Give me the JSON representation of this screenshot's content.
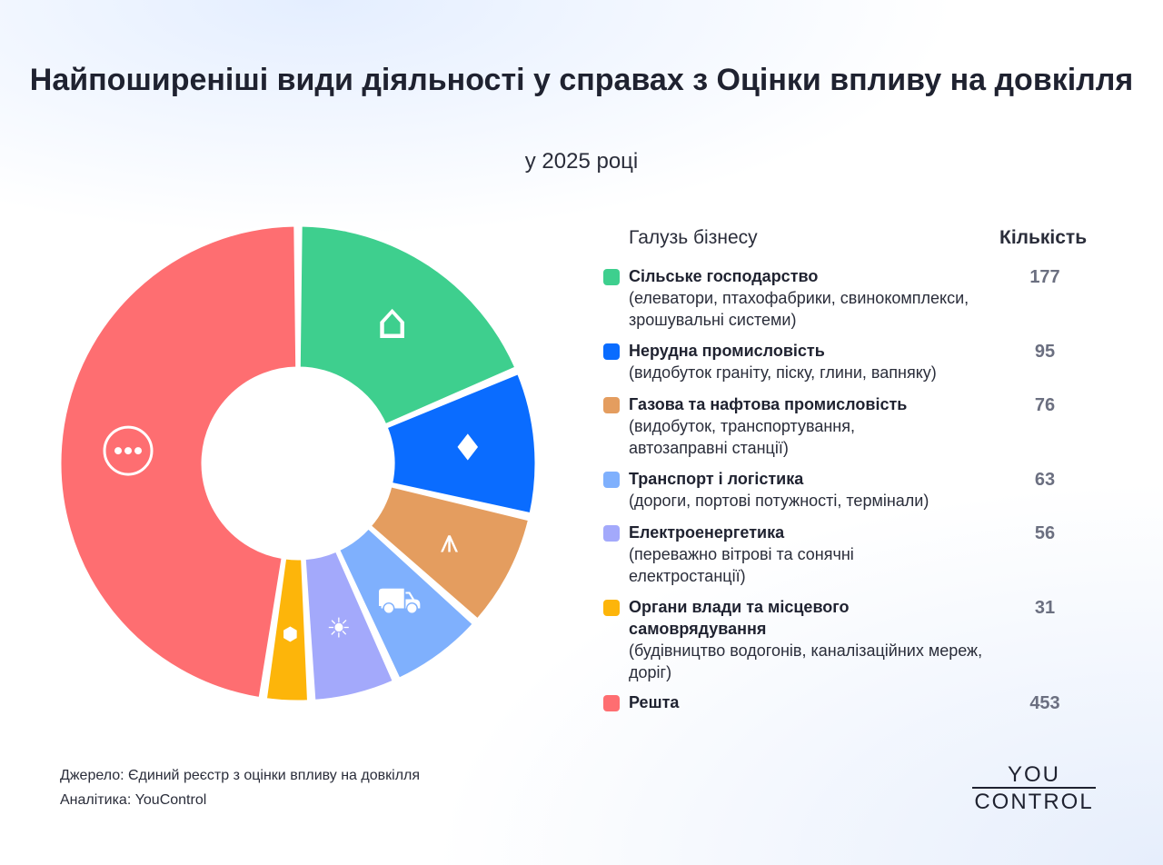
{
  "header": {
    "title": "Найпоширеніші види діяльності у справах з Оцінки впливу на довкілля",
    "subtitle": "у 2025 році"
  },
  "legend": {
    "industry_header": "Галузь бізнесу",
    "count_header": "Кількість",
    "items": [
      {
        "name": "Сільське господарство",
        "desc": "(елеватори, птахофабрики, свинокомплекси, зрошувальні системи)",
        "value": "177",
        "color": "#3ecf8e",
        "icon": "barn-icon"
      },
      {
        "name": "Нерудна промисловість",
        "desc": "(видобуток граніту, піску, глини, вапняку)",
        "value": "95",
        "color": "#0a6cff",
        "icon": "crystals-icon"
      },
      {
        "name": "Газова та нафтова промисловість",
        "desc": "(видобуток, транспортування, автозаправні станції)",
        "value": "76",
        "color": "#e49d5f",
        "icon": "oil-rig-icon"
      },
      {
        "name": "Транспорт і логістика",
        "desc": "(дороги, портові потужності, термінали)",
        "value": "63",
        "color": "#7fb0fd",
        "icon": "truck-icon"
      },
      {
        "name": "Електроенергетика",
        "desc": "(переважно вітрові та сонячні електростанції)",
        "value": "56",
        "color": "#a3a9fb",
        "icon": "lightbulb-icon"
      },
      {
        "name": "Органи влади та місцевого самоврядування",
        "desc": "(будівництво водогонів, каналізаційних мереж, доріг)",
        "value": "31",
        "color": "#fdb50a",
        "icon": "shield-user-icon"
      },
      {
        "name": "Решта",
        "desc": "",
        "value": "453",
        "color": "#fe6e71",
        "icon": "more-dots-icon"
      }
    ]
  },
  "footer": {
    "source": "Джерело: Єдиний реєстр з оцінки впливу на довкілля",
    "analytics": "Аналітика: YouControl"
  },
  "logo": {
    "line1": "YOU",
    "line2": "CONTROL"
  },
  "chart_data": {
    "type": "pie",
    "variant": "donut",
    "title": "Найпоширеніші види діяльності у справах з Оцінки впливу на довкілля",
    "subtitle": "у 2025 році",
    "categories": [
      "Сільське господарство",
      "Нерудна промисловість",
      "Газова та нафтова промисловість",
      "Транспорт і логістика",
      "Електроенергетика",
      "Органи влади та місцевого самоврядування",
      "Решта"
    ],
    "values": [
      177,
      95,
      76,
      63,
      56,
      31,
      453
    ],
    "colors": [
      "#3ecf8e",
      "#0a6cff",
      "#e49d5f",
      "#7fb0fd",
      "#a3a9fb",
      "#fdb50a",
      "#fe6e71"
    ],
    "legend_position": "right",
    "center": [
      328,
      510
    ],
    "inner_radius": 105,
    "outer_radius": 262
  }
}
